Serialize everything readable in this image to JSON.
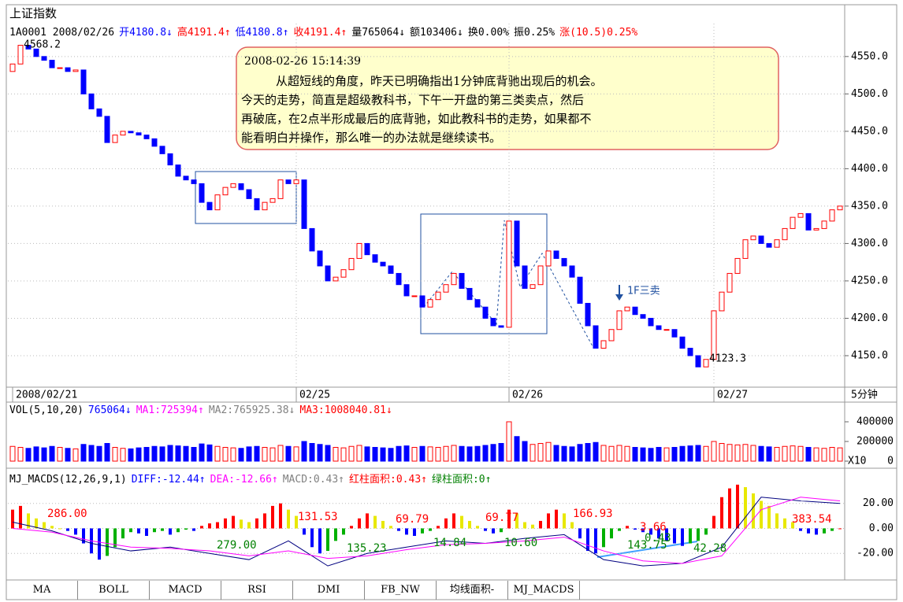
{
  "header": {
    "title": "上证指数",
    "quote": [
      {
        "text": "1A0001 2008/02/26",
        "color": "#000000"
      },
      {
        "text": "开4180.8↓",
        "color": "#0000ff"
      },
      {
        "text": "高4191.4↑",
        "color": "#ff0000"
      },
      {
        "text": "低4180.8↑",
        "color": "#0000ff"
      },
      {
        "text": "收4191.4↑",
        "color": "#ff0000"
      },
      {
        "text": "量765064↓",
        "color": "#000000"
      },
      {
        "text": "额103406↓",
        "color": "#000000"
      },
      {
        "text": "换0.00%",
        "color": "#000000"
      },
      {
        "text": "振0.25%",
        "color": "#000000"
      },
      {
        "text": "涨(10.5)0.25%",
        "color": "#ff0000"
      }
    ],
    "period": "5分钟"
  },
  "note": {
    "time": "2008-02-26 15:14:39",
    "lines": [
      "从超短线的角度，昨天已明确指出1分钟底背驰出现后的机会。",
      "今天的走势，简直是超级教科书，下午一开盘的第三类卖点，然后",
      "再破底，在2点半形成最后的底背驰，如此教科书的走势，如果都不",
      "能看明白并操作，那么唯一的办法就是继续读书。"
    ]
  },
  "tabs": [
    "MA",
    "BOLL",
    "MACD",
    "RSI",
    "DMI",
    "FB_NW",
    "均线面积-",
    "MJ_MACDS"
  ],
  "chart_data": [
    {
      "type": "candlestick",
      "up_color": "#ff0000",
      "down_color": "#0000ff",
      "grid": true,
      "open": [
        4530,
        4540,
        4565,
        4560,
        4550,
        4545,
        4535,
        4535,
        4530,
        4532,
        4500,
        4480,
        4470,
        4435,
        4445,
        4450,
        4448,
        4445,
        4440,
        4430,
        4420,
        4405,
        4390,
        4385,
        4380,
        4355,
        4345,
        4365,
        4375,
        4380,
        4372,
        4360,
        4345,
        4355,
        4360,
        4385,
        4380,
        4385,
        4320,
        4290,
        4270,
        4250,
        4255,
        4265,
        4280,
        4300,
        4285,
        4275,
        4270,
        4260,
        4245,
        4230,
        4230,
        4215,
        4225,
        4235,
        4245,
        4260,
        4240,
        4225,
        4215,
        4200,
        4190,
        4188,
        4330,
        4270,
        4240,
        4245,
        4270,
        4290,
        4280,
        4270,
        4255,
        4220,
        4190,
        4160,
        4170,
        4185,
        4210,
        4215,
        4205,
        4200,
        4190,
        4185,
        4185,
        4175,
        4160,
        4150,
        4135,
        4145,
        4210,
        4235,
        4260,
        4280,
        4305,
        4310,
        4300,
        4295,
        4305,
        4320,
        4335,
        4340,
        4318,
        4320,
        4330,
        4345
      ],
      "close": [
        4540,
        4565,
        4560,
        4550,
        4545,
        4535,
        4535,
        4530,
        4532,
        4500,
        4480,
        4470,
        4435,
        4445,
        4450,
        4448,
        4445,
        4440,
        4430,
        4420,
        4405,
        4390,
        4385,
        4380,
        4355,
        4345,
        4365,
        4375,
        4380,
        4372,
        4360,
        4345,
        4355,
        4360,
        4385,
        4380,
        4385,
        4320,
        4290,
        4270,
        4250,
        4255,
        4265,
        4280,
        4300,
        4285,
        4275,
        4270,
        4260,
        4245,
        4230,
        4230,
        4215,
        4225,
        4235,
        4245,
        4260,
        4240,
        4225,
        4215,
        4200,
        4190,
        4188,
        4330,
        4270,
        4240,
        4245,
        4270,
        4290,
        4280,
        4270,
        4255,
        4220,
        4190,
        4160,
        4170,
        4185,
        4210,
        4215,
        4205,
        4200,
        4190,
        4185,
        4185,
        4175,
        4160,
        4150,
        4135,
        4145,
        4210,
        4235,
        4260,
        4280,
        4305,
        4310,
        4300,
        4295,
        4305,
        4320,
        4335,
        4340,
        4318,
        4320,
        4330,
        4345,
        4350
      ],
      "ylim": [
        4110,
        4594
      ],
      "yticks": [
        {
          "value": 4150,
          "label": "4150.0"
        },
        {
          "value": 4200,
          "label": "4200.0"
        },
        {
          "value": 4250,
          "label": "4250.0"
        },
        {
          "value": 4300,
          "label": "4300.0"
        },
        {
          "value": 4350,
          "label": "4350.0"
        },
        {
          "value": 4400,
          "label": "4400.0"
        },
        {
          "value": 4450,
          "label": "4450.0"
        },
        {
          "value": 4500,
          "label": "4500.0"
        },
        {
          "value": 4550,
          "label": "4550.0"
        }
      ],
      "xticks": [
        {
          "value": 0,
          "label": "2008/02/21"
        },
        {
          "value": 36,
          "label": "02/25"
        },
        {
          "value": 63,
          "label": "02/26"
        },
        {
          "value": 89,
          "label": "02/27"
        }
      ],
      "annotations": [
        "4568.2",
        "4123.3",
        "1F三卖"
      ]
    },
    {
      "type": "bar",
      "unit_label": "X10",
      "legend": [
        {
          "text": "VOL(5,10,20)",
          "color": "#000000"
        },
        {
          "text": "765064↓",
          "color": "#0000ff"
        },
        {
          "text": "MA1:725394↑",
          "color": "#ff00ff"
        },
        {
          "text": "MA2:765925.38↓",
          "color": "#808080"
        },
        {
          "text": "MA3:1008040.81↓",
          "color": "#ff0000"
        }
      ],
      "values": [
        150000,
        140000,
        130000,
        145000,
        135000,
        150000,
        140000,
        130000,
        125000,
        170000,
        160000,
        150000,
        180000,
        140000,
        130000,
        125000,
        135000,
        140000,
        150000,
        145000,
        160000,
        155000,
        150000,
        140000,
        175000,
        165000,
        150000,
        140000,
        135000,
        130000,
        145000,
        150000,
        140000,
        135000,
        160000,
        150000,
        145000,
        200000,
        180000,
        170000,
        160000,
        140000,
        135000,
        150000,
        160000,
        145000,
        140000,
        135000,
        130000,
        150000,
        155000,
        140000,
        150000,
        145000,
        140000,
        150000,
        160000,
        150000,
        145000,
        150000,
        160000,
        170000,
        180000,
        400000,
        250000,
        200000,
        170000,
        180000,
        190000,
        160000,
        150000,
        145000,
        170000,
        180000,
        190000,
        160000,
        150000,
        160000,
        150000,
        140000,
        135000,
        130000,
        140000,
        135000,
        140000,
        150000,
        155000,
        160000,
        150000,
        200000,
        180000,
        170000,
        165000,
        170000,
        160000,
        150000,
        145000,
        140000,
        150000,
        155000,
        150000,
        140000,
        135000,
        130000,
        140000,
        135000
      ],
      "ylim": [
        -56000,
        584000
      ],
      "yticks": [
        0,
        200000,
        400000
      ]
    },
    {
      "type": "macd",
      "bar_colors": [
        "#ff0000",
        "#e8e800",
        "#0000ff",
        "#00b000"
      ],
      "legend": [
        {
          "text": "MJ_MACDS(12,26,9,1)",
          "color": "#000000"
        },
        {
          "text": "DIFF:-12.44↑",
          "color": "#0000ff"
        },
        {
          "text": "DEA:-12.66↑",
          "color": "#ff00ff"
        },
        {
          "text": "MACD:0.43↑",
          "color": "#808080"
        },
        {
          "text": "红柱面积:0.43↑",
          "color": "#ff0000"
        },
        {
          "text": "绿柱面积:0↑",
          "color": "#008000"
        }
      ],
      "values": [
        15,
        18,
        12,
        8,
        5,
        2,
        0,
        -2,
        -5,
        -12,
        -20,
        -25,
        -22,
        -15,
        -8,
        -3,
        -4,
        -6,
        -3,
        -2,
        -5,
        -3,
        -1,
        -2,
        2,
        4,
        5,
        8,
        10,
        7,
        5,
        8,
        12,
        18,
        20,
        15,
        10,
        -5,
        -15,
        -20,
        -18,
        -10,
        -5,
        2,
        8,
        12,
        10,
        6,
        2,
        -2,
        -5,
        -6,
        -4,
        -2,
        2,
        8,
        12,
        10,
        6,
        2,
        -2,
        -4,
        -3,
        15,
        12,
        5,
        3,
        6,
        12,
        15,
        12,
        5,
        -8,
        -18,
        -20,
        -15,
        -8,
        -2,
        2,
        -1,
        -3,
        -5,
        -8,
        -10,
        -12,
        -14,
        -12,
        -10,
        -5,
        10,
        25,
        32,
        35,
        33,
        28,
        22,
        18,
        12,
        8,
        5,
        -2,
        -4,
        -5,
        -4,
        -2,
        0
      ],
      "series": [
        {
          "name": "DIFF",
          "color": "#000080",
          "x": [
            0,
            5,
            10,
            15,
            20,
            25,
            30,
            35,
            40,
            45,
            50,
            55,
            60,
            65,
            70,
            75,
            80,
            85,
            90,
            95,
            100,
            105
          ],
          "values": [
            5,
            -2,
            -12,
            -18,
            -15,
            -20,
            -25,
            -10,
            -30,
            -20,
            -15,
            -10,
            -12,
            -8,
            -5,
            -25,
            -30,
            -28,
            -15,
            25,
            22,
            20
          ]
        },
        {
          "name": "DEA",
          "color": "#ff00ff",
          "x": [
            0,
            5,
            10,
            15,
            20,
            25,
            30,
            35,
            40,
            45,
            50,
            55,
            60,
            65,
            70,
            75,
            80,
            85,
            90,
            95,
            100,
            105
          ],
          "values": [
            0,
            -3,
            -10,
            -15,
            -16,
            -18,
            -22,
            -18,
            -24,
            -22,
            -17,
            -13,
            -12,
            -10,
            -7,
            -18,
            -26,
            -28,
            -22,
            15,
            25,
            22
          ]
        }
      ],
      "ylim": [
        -40,
        45
      ],
      "yticks": [
        {
          "value": 20,
          "label": "20.00"
        },
        {
          "value": 0,
          "label": "0.00"
        },
        {
          "value": -20,
          "label": "-20.00"
        }
      ],
      "annotations": [
        {
          "text": "286.00",
          "color": "#ff0000"
        },
        {
          "text": "279.00",
          "color": "#008000"
        },
        {
          "text": "131.53",
          "color": "#ff0000"
        },
        {
          "text": "135.23",
          "color": "#008000"
        },
        {
          "text": "69.79",
          "color": "#ff0000"
        },
        {
          "text": "14.84",
          "color": "#008000"
        },
        {
          "text": "69.77",
          "color": "#ff0000"
        },
        {
          "text": "10.60",
          "color": "#008000"
        },
        {
          "text": "166.93",
          "color": "#ff0000"
        },
        {
          "text": "3.66",
          "color": "#ff0000"
        },
        {
          "text": "143.75",
          "color": "#008000"
        },
        {
          "text": "0.43",
          "color": "#008000"
        },
        {
          "text": "42.28",
          "color": "#008000"
        },
        {
          "text": "383.54",
          "color": "#ff0000"
        }
      ]
    }
  ]
}
